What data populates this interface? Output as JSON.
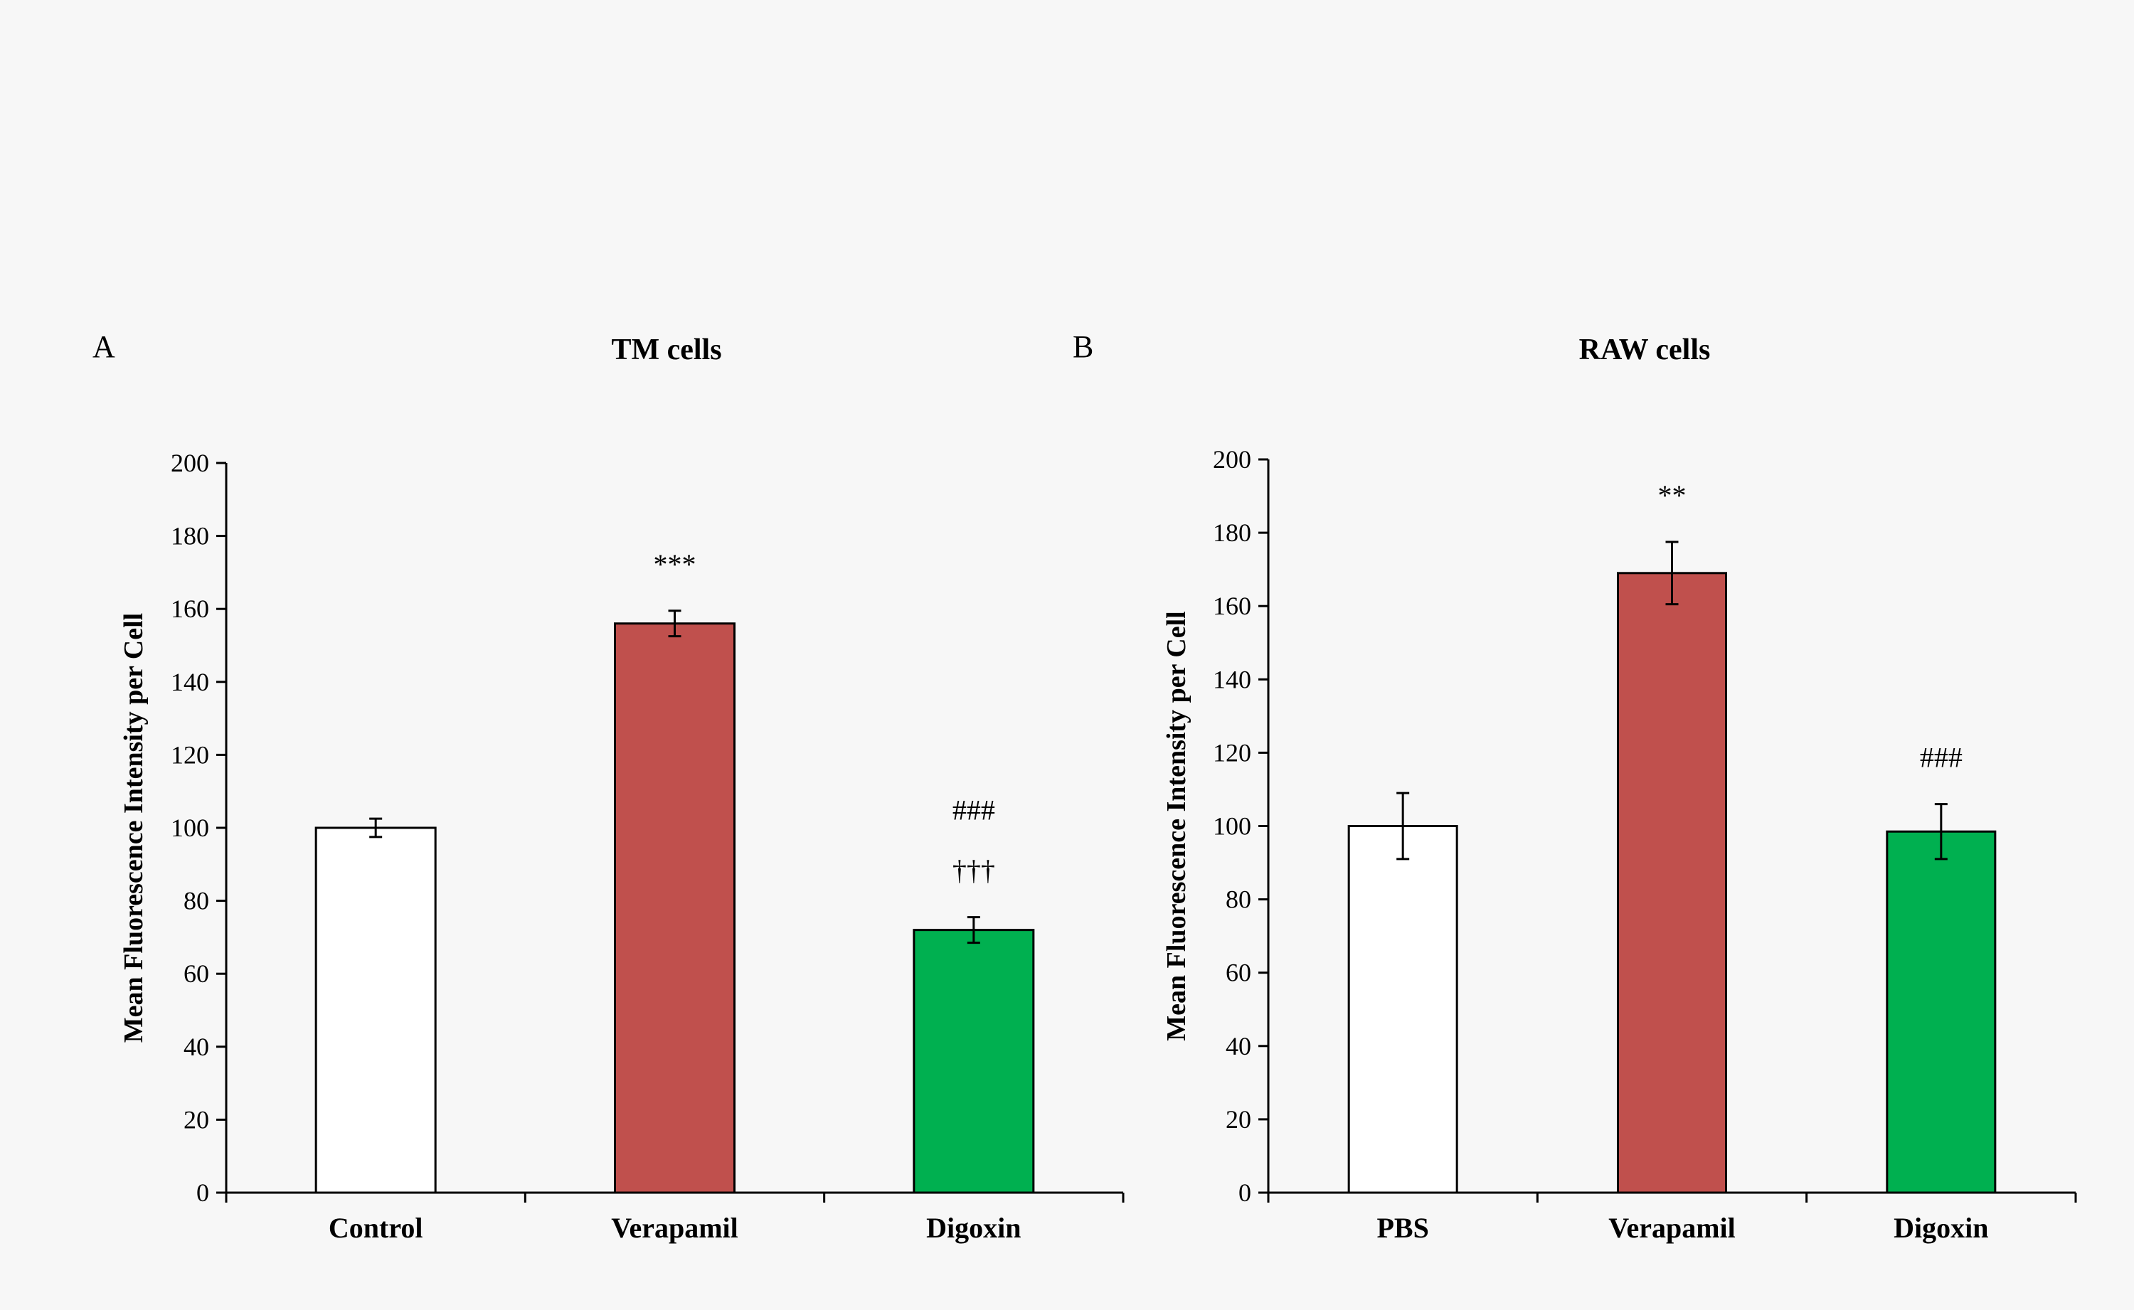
{
  "chart_data": [
    {
      "type": "bar",
      "panel": "A",
      "title": "TM cells",
      "xlabel": "",
      "ylabel": "Mean Fluorescence Intensity per Cell",
      "ylim": [
        0,
        200
      ],
      "yticks": [
        0,
        20,
        40,
        60,
        80,
        100,
        120,
        140,
        160,
        180,
        200
      ],
      "categories": [
        "Control",
        "Verapamil",
        "Digoxin"
      ],
      "values": [
        100,
        156,
        72
      ],
      "errors": [
        2.5,
        3.5,
        3.5
      ],
      "colors": [
        "#ffffff",
        "#c0504d",
        "#00b050"
      ],
      "annotations": [
        [],
        [
          "***"
        ],
        [
          "†††",
          "###"
        ]
      ],
      "grid": false,
      "legend": "none"
    },
    {
      "type": "bar",
      "panel": "B",
      "title": "RAW cells",
      "xlabel": "",
      "ylabel": "Mean Fluorescence Intensity per Cell",
      "ylim": [
        0,
        200
      ],
      "yticks": [
        0,
        20,
        40,
        60,
        80,
        100,
        120,
        140,
        160,
        180,
        200
      ],
      "categories": [
        "PBS",
        "Verapamil",
        "Digoxin"
      ],
      "values": [
        100,
        169,
        98.5
      ],
      "errors": [
        9,
        8.5,
        7.5
      ],
      "colors": [
        "#ffffff",
        "#c0504d",
        "#00b050"
      ],
      "annotations": [
        [],
        [
          "**"
        ],
        [
          "###"
        ]
      ],
      "grid": false,
      "legend": "none"
    }
  ]
}
